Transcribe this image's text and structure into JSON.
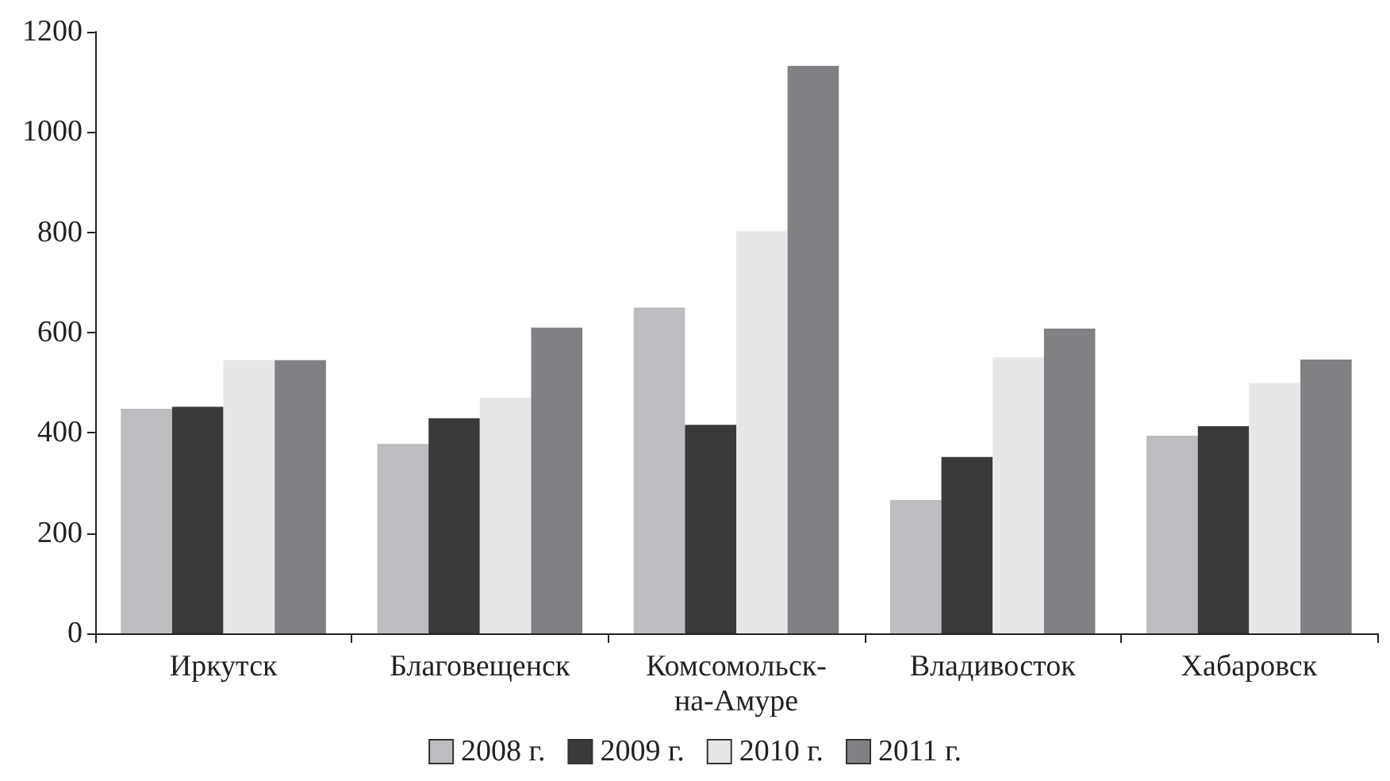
{
  "chart_data": {
    "type": "bar",
    "categories": [
      "Иркутск",
      "Благовещенск",
      "Комсомольск-на-Амуре",
      "Владивосток",
      "Хабаровск"
    ],
    "series": [
      {
        "name": "2008 г.",
        "color": "#bcbdc0",
        "values": [
          448,
          378,
          650,
          266,
          394
        ]
      },
      {
        "name": "2009 г.",
        "color": "#3a3a3a",
        "values": [
          452,
          429,
          416,
          352,
          413
        ]
      },
      {
        "name": "2010 г.",
        "color": "#e6e7e8",
        "values": [
          545,
          470,
          802,
          550,
          499
        ]
      },
      {
        "name": "2011 г.",
        "color": "#808184",
        "values": [
          545,
          610,
          1132,
          608,
          546
        ]
      }
    ],
    "ylim": [
      0,
      1200
    ],
    "yticks": [
      0,
      200,
      400,
      600,
      800,
      1000,
      1200
    ],
    "grid": false,
    "legend": "bottom"
  }
}
